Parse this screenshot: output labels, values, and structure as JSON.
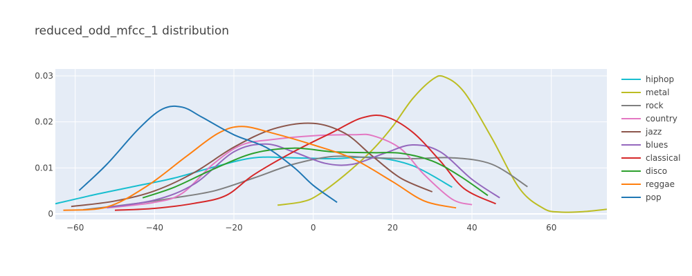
{
  "chart_data": {
    "type": "line",
    "title": "reduced_odd_mfcc_1 distribution",
    "xlabel": "",
    "ylabel": "",
    "xlim": [
      -65,
      74
    ],
    "ylim": [
      -0.0012,
      0.0315
    ],
    "x_ticks": [
      -60,
      -40,
      -20,
      0,
      20,
      40,
      60
    ],
    "x_tick_labels": [
      "−60",
      "−40",
      "−20",
      "0",
      "20",
      "40",
      "60"
    ],
    "y_ticks": [
      0,
      0.01,
      0.02,
      0.03
    ],
    "y_tick_labels": [
      "0",
      "0.01",
      "0.02",
      "0.03"
    ],
    "grid": true,
    "legend_position": "right",
    "series": [
      {
        "name": "hiphop",
        "color": "#17becf",
        "x": [
          -65,
          -55,
          -45,
          -35,
          -25,
          -15,
          -5,
          5,
          15,
          25,
          35
        ],
        "y": [
          0.0022,
          0.0042,
          0.006,
          0.0078,
          0.0102,
          0.0122,
          0.0122,
          0.012,
          0.0123,
          0.0105,
          0.0058
        ]
      },
      {
        "name": "metal",
        "color": "#bcbd22",
        "x": [
          -9,
          -3,
          1,
          8,
          15,
          20,
          25,
          30,
          33,
          38,
          45,
          52,
          58,
          62,
          68,
          74
        ],
        "y": [
          0.0019,
          0.0026,
          0.004,
          0.0085,
          0.014,
          0.019,
          0.025,
          0.0292,
          0.0298,
          0.0265,
          0.0165,
          0.0055,
          0.0012,
          0.0004,
          0.0005,
          0.001
        ]
      },
      {
        "name": "rock",
        "color": "#7f7f7f",
        "x": [
          -58,
          -45,
          -35,
          -25,
          -15,
          -5,
          5,
          15,
          25,
          35,
          45,
          54
        ],
        "y": [
          0.0009,
          0.0022,
          0.0035,
          0.005,
          0.0078,
          0.0108,
          0.0125,
          0.0122,
          0.012,
          0.0122,
          0.0108,
          0.0059
        ]
      },
      {
        "name": "country",
        "color": "#e377c2",
        "x": [
          -52,
          -40,
          -33,
          -25,
          -18,
          -10,
          0,
          10,
          15,
          22,
          28,
          35,
          40
        ],
        "y": [
          0.0013,
          0.0025,
          0.0045,
          0.011,
          0.015,
          0.0162,
          0.017,
          0.0172,
          0.017,
          0.0142,
          0.0085,
          0.0032,
          0.002
        ]
      },
      {
        "name": "jazz",
        "color": "#8c564b",
        "x": [
          -61,
          -50,
          -40,
          -30,
          -20,
          -10,
          0,
          8,
          15,
          22,
          30
        ],
        "y": [
          0.0016,
          0.0028,
          0.005,
          0.009,
          0.0145,
          0.0185,
          0.0197,
          0.0175,
          0.0125,
          0.0078,
          0.0048
        ]
      },
      {
        "name": "blues",
        "color": "#9467bd",
        "x": [
          -53,
          -40,
          -30,
          -20,
          -12,
          -5,
          3,
          10,
          18,
          25,
          32,
          40,
          47
        ],
        "y": [
          0.0013,
          0.003,
          0.0065,
          0.0135,
          0.0152,
          0.0135,
          0.011,
          0.0108,
          0.0132,
          0.015,
          0.0135,
          0.0075,
          0.0035
        ]
      },
      {
        "name": "classical",
        "color": "#d62728",
        "x": [
          -50,
          -40,
          -30,
          -22,
          -15,
          -5,
          5,
          12,
          18,
          25,
          32,
          38,
          46
        ],
        "y": [
          0.0008,
          0.0012,
          0.0023,
          0.004,
          0.0085,
          0.0135,
          0.0178,
          0.0208,
          0.0212,
          0.0178,
          0.0115,
          0.0055,
          0.0022
        ]
      },
      {
        "name": "disco",
        "color": "#2ca02c",
        "x": [
          -43,
          -35,
          -25,
          -15,
          -5,
          5,
          15,
          22,
          30,
          37,
          44
        ],
        "y": [
          0.0035,
          0.0058,
          0.0098,
          0.0132,
          0.0143,
          0.0135,
          0.0133,
          0.0132,
          0.0115,
          0.0082,
          0.004
        ]
      },
      {
        "name": "reggae",
        "color": "#ff7f0e",
        "x": [
          -63,
          -52,
          -42,
          -32,
          -24,
          -18,
          -10,
          0,
          10,
          20,
          28,
          36
        ],
        "y": [
          0.0008,
          0.0015,
          0.006,
          0.0125,
          0.0175,
          0.019,
          0.0175,
          0.015,
          0.012,
          0.007,
          0.0028,
          0.0013
        ]
      },
      {
        "name": "pop",
        "color": "#1f77b4",
        "x": [
          -59,
          -52,
          -44,
          -38,
          -33,
          -28,
          -20,
          -12,
          -5,
          0,
          6
        ],
        "y": [
          0.0051,
          0.0108,
          0.0185,
          0.0228,
          0.0232,
          0.021,
          0.0172,
          0.0145,
          0.0102,
          0.0062,
          0.0025
        ]
      }
    ]
  }
}
